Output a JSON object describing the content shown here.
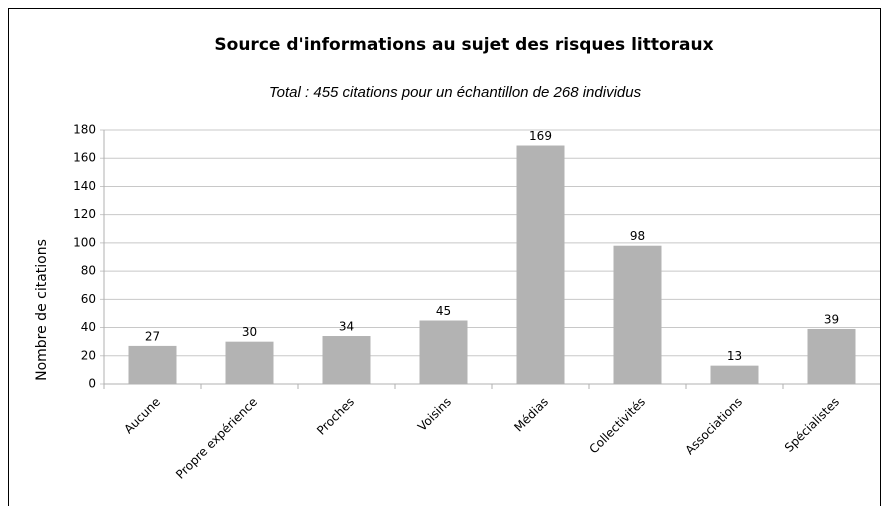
{
  "chart_data": {
    "type": "bar",
    "title": "Source d'informations au sujet des risques littoraux",
    "subtitle": "Total : 455 citations pour un échantillon de 268 individus",
    "y_label": "Nombre de citations",
    "categories": [
      "Aucune",
      "Propre expérience",
      "Proches",
      "Voisins",
      "Médias",
      "Collectivités",
      "Associations",
      "Spécialistes"
    ],
    "values": [
      27,
      30,
      34,
      45,
      169,
      98,
      13,
      39
    ],
    "color": "#b3b3b3",
    "ylim": [
      0,
      180
    ],
    "yticks": [
      0,
      20,
      40,
      60,
      80,
      100,
      120,
      140,
      160,
      180
    ],
    "grid": true
  }
}
